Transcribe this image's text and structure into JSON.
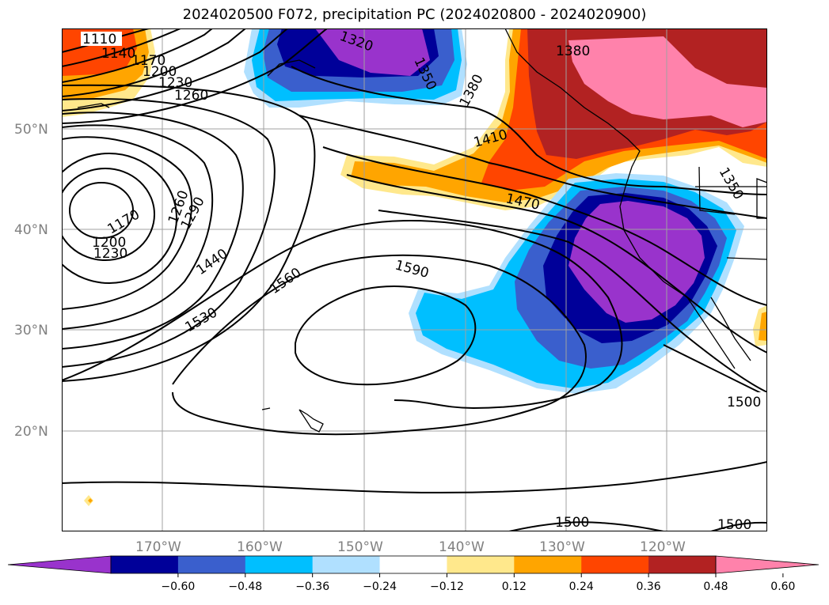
{
  "title": "2024020500 F072, precipitation PC (2024020800 - 2024020900)",
  "colors": {
    "purple": "#9933cc",
    "navy": "#000099",
    "royal": "#3a5fcd",
    "deepsky": "#00bfff",
    "lightblue": "#b0e0ff",
    "white": "#ffffff",
    "lightyellow": "#ffe88c",
    "orange": "#ffa500",
    "orangered": "#ff4500",
    "firebrick": "#b22222",
    "pink": "#ff82ab",
    "grid": "#a0a0a0"
  },
  "lat_labels": [
    "50°N",
    "40°N",
    "30°N",
    "20°N"
  ],
  "lon_labels": [
    "170°W",
    "160°W",
    "150°W",
    "140°W",
    "130°W",
    "120°W"
  ],
  "contour_labels": [
    "1110",
    "1140",
    "1170",
    "1200",
    "1230",
    "1260",
    "1320",
    "1350",
    "1380",
    "1380",
    "1410",
    "1470",
    "1350",
    "1260",
    "1290",
    "1170",
    "1200",
    "1230",
    "1440",
    "1560",
    "1590",
    "1530",
    "1500",
    "1500",
    "1500"
  ],
  "colorbar": {
    "ticks": [
      "−0.60",
      "−0.48",
      "−0.36",
      "−0.24",
      "−0.12",
      "0.12",
      "0.24",
      "0.36",
      "0.48",
      "0.60"
    ],
    "colors": [
      "#9933cc",
      "#000099",
      "#3a5fcd",
      "#00bfff",
      "#b0e0ff",
      "#ffffff",
      "#ffe88c",
      "#ffa500",
      "#ff4500",
      "#b22222",
      "#ff82ab"
    ]
  }
}
